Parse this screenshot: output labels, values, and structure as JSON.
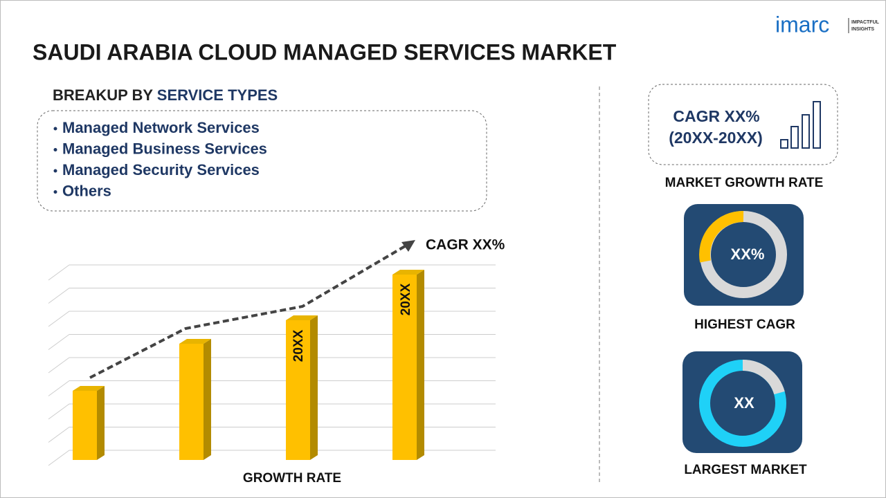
{
  "header": {
    "title": "SAUDI ARABIA CLOUD MANAGED SERVICES MARKET",
    "logo": {
      "brand": "imarc",
      "tagline": [
        "IMPACTFUL",
        "INSIGHTS"
      ]
    }
  },
  "breakup": {
    "label": "BREAKUP BY",
    "highlight": "SERVICE TYPES",
    "items": [
      "Managed Network Services",
      "Managed Business Services",
      "Managed Security Services",
      "Others"
    ]
  },
  "growth_chart": {
    "cagr": "CAGR XX%",
    "bar_labels": [
      "20XX",
      "20XX"
    ],
    "caption": "GROWTH RATE"
  },
  "sidebar": {
    "growth": {
      "cagr": "CAGR XX%",
      "period": "(20XX-20XX)",
      "caption": "MARKET GROWTH RATE"
    },
    "highest": {
      "value": "XX%",
      "caption": "HIGHEST CAGR"
    },
    "largest": {
      "value": "XX",
      "caption": "LARGEST MARKET"
    }
  }
}
